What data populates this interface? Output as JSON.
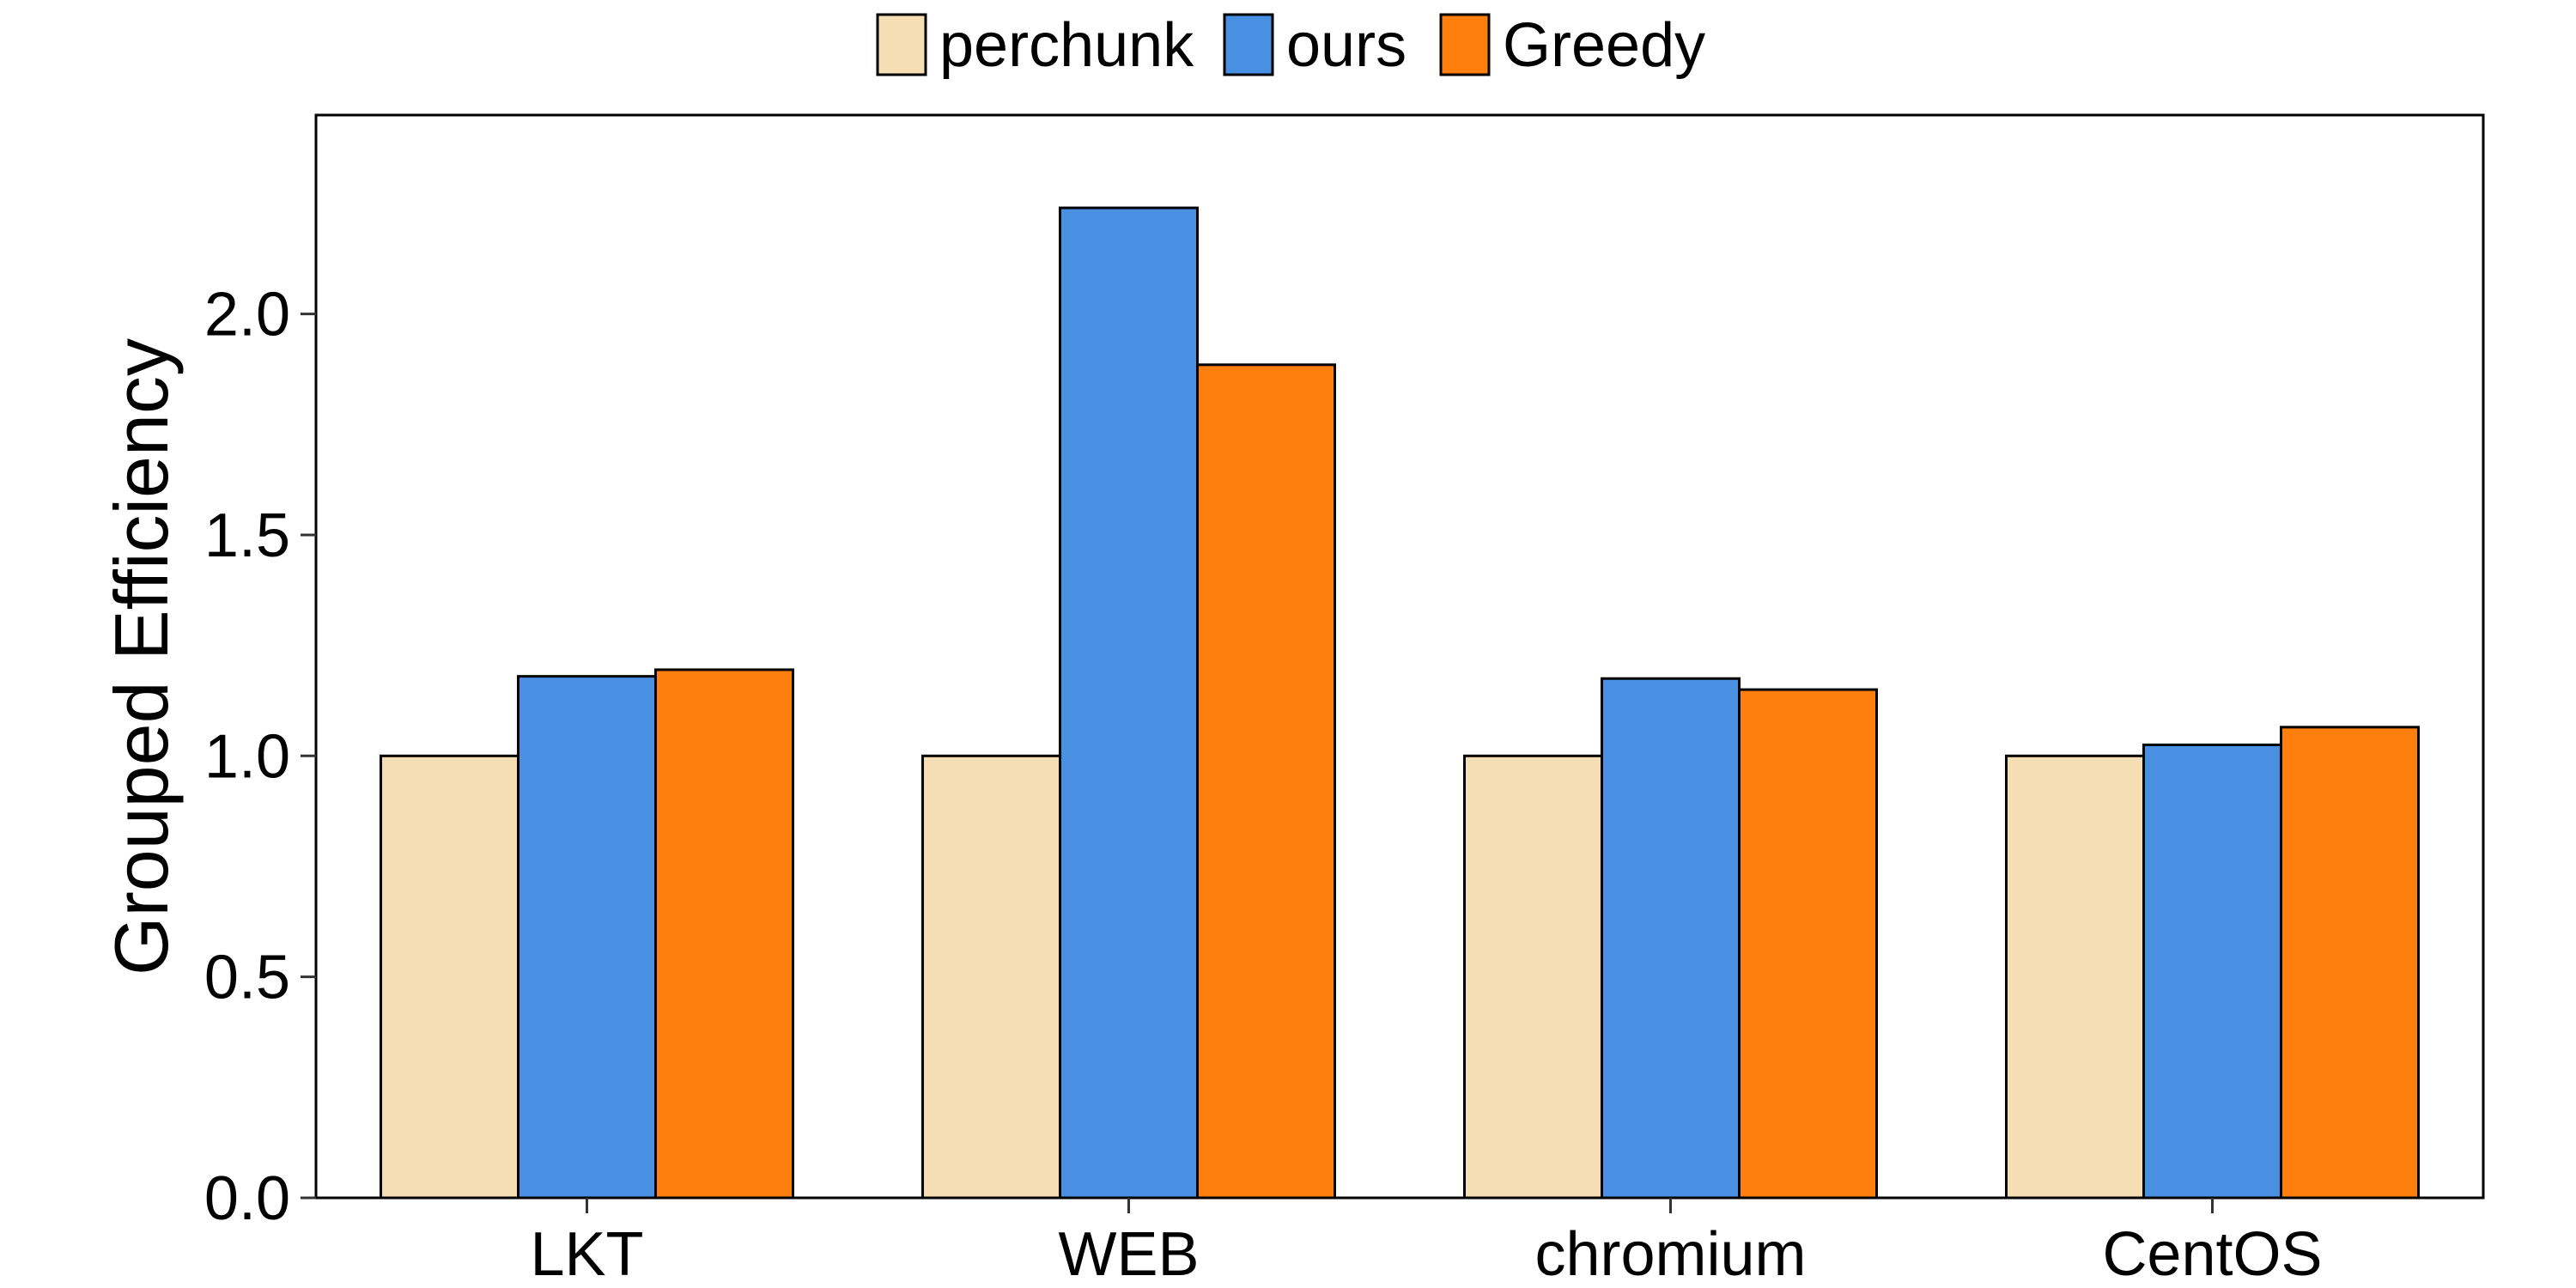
{
  "chart_data": {
    "type": "bar",
    "title": "",
    "xlabel": "",
    "ylabel": "Grouped Efficiency",
    "categories": [
      "LKT",
      "WEB",
      "chromium",
      "CentOS"
    ],
    "series": [
      {
        "name": "perchunk",
        "color": "#F5DEB3",
        "values": [
          1.0,
          1.0,
          1.0,
          1.0
        ]
      },
      {
        "name": "ours",
        "color": "#4A90E2",
        "values": [
          1.18,
          2.24,
          1.175,
          1.025
        ]
      },
      {
        "name": "Greedy",
        "color": "#FF7F0E",
        "values": [
          1.195,
          1.885,
          1.15,
          1.065
        ]
      }
    ],
    "ylim": [
      0,
      2.45
    ],
    "yticks": [
      "0.0",
      "0.5",
      "1.0",
      "1.5",
      "2.0"
    ],
    "legend_position": "top-center",
    "grid": false
  }
}
